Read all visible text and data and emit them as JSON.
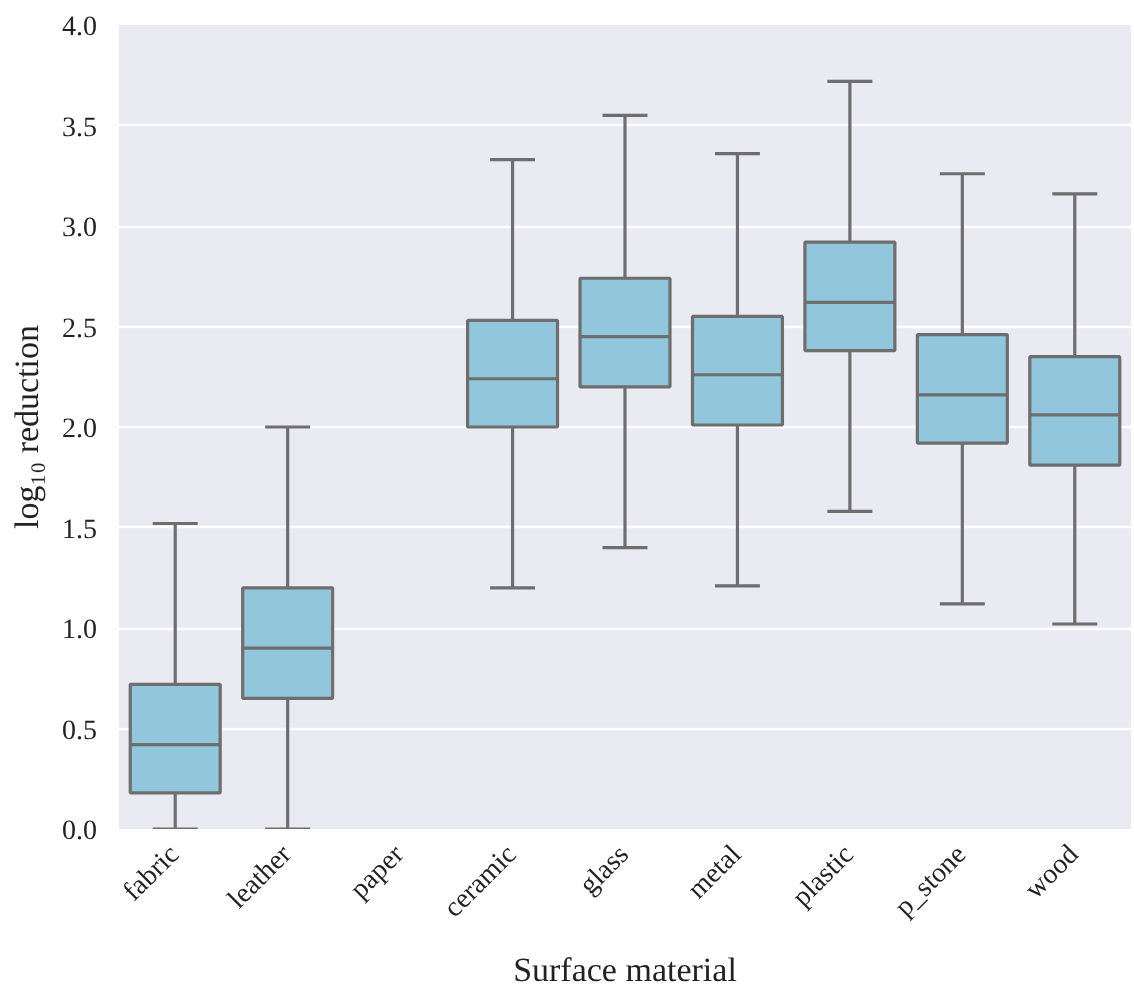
{
  "chart_data": {
    "type": "box",
    "xlabel": "Surface material",
    "ylabel": "log₁₀ reduction",
    "categories": [
      "fabric",
      "leather",
      "paper",
      "ceramic",
      "glass",
      "metal",
      "plastic",
      "p_stone",
      "wood"
    ],
    "color": "#92c6dd",
    "boxes": [
      {
        "low": 0.0,
        "q1": 0.18,
        "median": 0.42,
        "q3": 0.72,
        "high": 1.52
      },
      {
        "low": 0.0,
        "q1": 0.65,
        "median": 0.9,
        "q3": 1.2,
        "high": 2.0
      },
      null,
      {
        "low": 1.2,
        "q1": 2.0,
        "median": 2.24,
        "q3": 2.53,
        "high": 3.33
      },
      {
        "low": 1.4,
        "q1": 2.2,
        "median": 2.45,
        "q3": 2.74,
        "high": 3.55
      },
      {
        "low": 1.21,
        "q1": 2.01,
        "median": 2.26,
        "q3": 2.55,
        "high": 3.36
      },
      {
        "low": 1.58,
        "q1": 2.38,
        "median": 2.62,
        "q3": 2.92,
        "high": 3.72
      },
      {
        "low": 1.12,
        "q1": 1.92,
        "median": 2.16,
        "q3": 2.46,
        "high": 3.26
      },
      {
        "low": 1.02,
        "q1": 1.81,
        "median": 2.06,
        "q3": 2.35,
        "high": 3.16
      }
    ],
    "ylim": [
      0,
      4
    ],
    "yticks": [
      {
        "value": 0,
        "label": "0.0"
      },
      {
        "value": 0.5,
        "label": "0.5"
      },
      {
        "value": 1,
        "label": "1.0"
      },
      {
        "value": 1.5,
        "label": "1.5"
      },
      {
        "value": 2,
        "label": "2.0"
      },
      {
        "value": 2.5,
        "label": "2.5"
      },
      {
        "value": 3,
        "label": "3.0"
      },
      {
        "value": 3.5,
        "label": "3.5"
      },
      {
        "value": 4,
        "label": "4.0"
      }
    ],
    "grid": "y"
  }
}
